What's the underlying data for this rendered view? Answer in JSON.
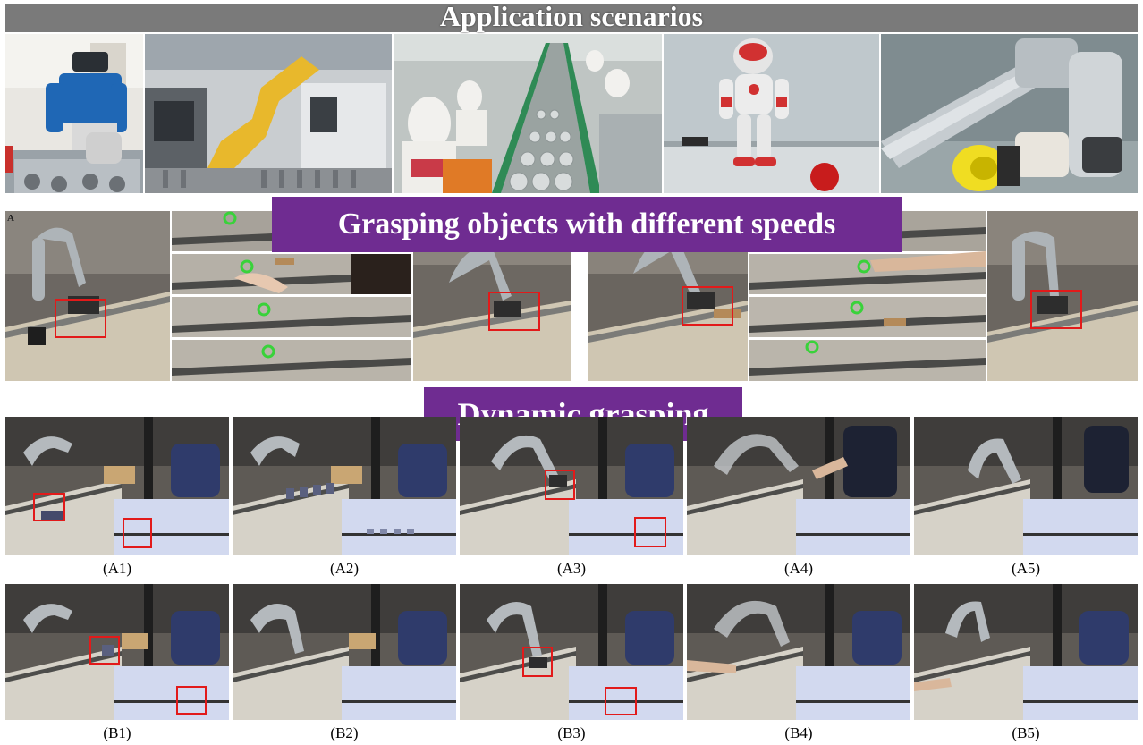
{
  "banner_top": "Application scenarios",
  "banner_mid": "Grasping objects with different speeds",
  "banner_low": "Dynamic grasping",
  "panel_label_a": "A",
  "captions_row_a": [
    "(A1)",
    "(A2)",
    "(A3)",
    "(A4)",
    "(A5)"
  ],
  "captions_row_b": [
    "(B1)",
    "(B2)",
    "(B3)",
    "(B4)",
    "(B5)"
  ],
  "colors": {
    "banner_purple": "#6f2c91",
    "banner_grey": "#7a7a7a",
    "highlight_red": "#e21a1a",
    "marker_green": "#39d23a"
  }
}
